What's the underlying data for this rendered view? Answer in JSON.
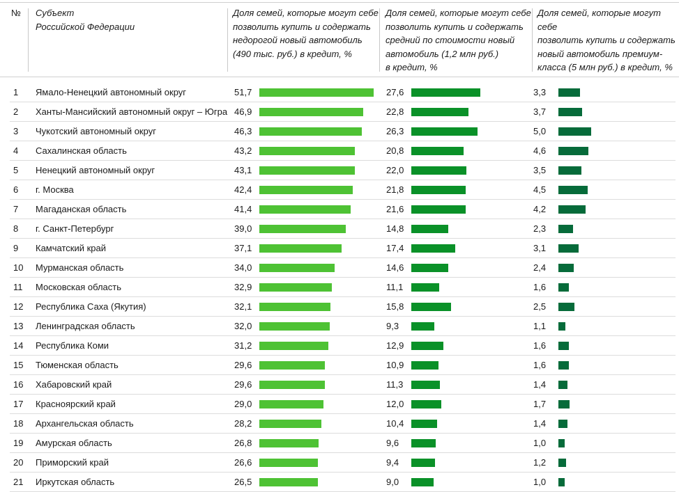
{
  "chart_data": {
    "type": "table",
    "title": "",
    "columns": [
      {
        "key": "num",
        "label": "№"
      },
      {
        "key": "region",
        "label": "Субъект\nРоссийской Федерации"
      },
      {
        "key": "cheap",
        "label": "Доля семей, которые могут себе позволить купить и содержать недорогой новый автомобиль (490 тыс. руб.) в кредит, %",
        "color": "#4ec234"
      },
      {
        "key": "mid",
        "label": "Доля семей, которые могут себе позволить купить и содержать средний по стоимости новый автомобиль (1,2 млн руб.) в кредит, %",
        "color": "#0a9128"
      },
      {
        "key": "premium",
        "label": "Доля семей, которые могут себе позволить купить и содержать новый автомобиль премиум-класса (5 млн руб.) в кредит, %",
        "color": "#066b3a"
      }
    ],
    "categories": [
      "Ямало-Ненецкий автономный округ",
      "Ханты-Мансийский автономный округ – Югра",
      "Чукотский автономный округ",
      "Сахалинская область",
      "Ненецкий автономный округ",
      "г. Москва",
      "Магаданская область",
      "г. Санкт-Петербург",
      "Камчатский край",
      "Мурманская область",
      "Московская область",
      "Республика Саха (Якутия)",
      "Ленинградская область",
      "Республика Коми",
      "Тюменская область",
      "Хабаровский край",
      "Красноярский край",
      "Архангельская область",
      "Амурская область",
      "Приморский край",
      "Иркутская область"
    ],
    "series": [
      {
        "name": "Недорогой новый автомобиль (490 тыс. руб.)",
        "color": "#4ec234",
        "values": [
          51.7,
          46.9,
          46.3,
          43.2,
          43.1,
          42.4,
          41.4,
          39.0,
          37.1,
          34.0,
          32.9,
          32.1,
          32.0,
          31.2,
          29.6,
          29.6,
          29.0,
          28.2,
          26.8,
          26.6,
          26.5
        ]
      },
      {
        "name": "Средний по стоимости новый автомобиль (1,2 млн руб.)",
        "color": "#0a9128",
        "values": [
          27.6,
          22.8,
          26.3,
          20.8,
          22.0,
          21.8,
          21.6,
          14.8,
          17.4,
          14.6,
          11.1,
          15.8,
          9.3,
          12.9,
          10.9,
          11.3,
          12.0,
          10.4,
          9.6,
          9.4,
          9.0
        ]
      },
      {
        "name": "Новый автомобиль премиум-класса (5 млн руб.)",
        "color": "#066b3a",
        "values": [
          3.3,
          3.7,
          5.0,
          4.6,
          3.5,
          4.5,
          4.2,
          2.3,
          3.1,
          2.4,
          1.6,
          2.5,
          1.1,
          1.6,
          1.6,
          1.4,
          1.7,
          1.4,
          1.0,
          1.2,
          1.0
        ]
      }
    ],
    "value_labels": [
      [
        "51,7",
        "27,6",
        "3,3"
      ],
      [
        "46,9",
        "22,8",
        "3,7"
      ],
      [
        "46,3",
        "26,3",
        "5,0"
      ],
      [
        "43,2",
        "20,8",
        "4,6"
      ],
      [
        "43,1",
        "22,0",
        "3,5"
      ],
      [
        "42,4",
        "21,8",
        "4,5"
      ],
      [
        "41,4",
        "21,6",
        "4,2"
      ],
      [
        "39,0",
        "14,8",
        "2,3"
      ],
      [
        "37,1",
        "17,4",
        "3,1"
      ],
      [
        "34,0",
        "14,6",
        "2,4"
      ],
      [
        "32,9",
        "11,1",
        "1,6"
      ],
      [
        "32,1",
        "15,8",
        "2,5"
      ],
      [
        "32,0",
        "9,3",
        "1,1"
      ],
      [
        "31,2",
        "12,9",
        "1,6"
      ],
      [
        "29,6",
        "10,9",
        "1,6"
      ],
      [
        "29,6",
        "11,3",
        "1,4"
      ],
      [
        "29,0",
        "12,0",
        "1,7"
      ],
      [
        "28,2",
        "10,4",
        "1,4"
      ],
      [
        "26,8",
        "9,6",
        "1,0"
      ],
      [
        "26,6",
        "9,4",
        "1,2"
      ],
      [
        "26,5",
        "9,0",
        "1,0"
      ]
    ]
  },
  "header": {
    "num": "№",
    "region_line1": "Субъект",
    "region_line2": "Российской Федерации",
    "col1_lines": [
      "Доля семей, которые могут себе",
      "позволить купить и содержать",
      "недорогой новый автомобиль",
      "(490 тыс. руб.) в кредит, %"
    ],
    "col2_lines": [
      "Доля семей, которые могут себе",
      "позволить купить и содержать",
      "средний по стоимости новый",
      "автомобиль (1,2 млн руб.)",
      "в кредит, %"
    ],
    "col3_lines": [
      "Доля семей, которые могут себе",
      "позволить купить и содержать",
      "новый автомобиль премиум-",
      "класса (5 млн руб.) в кредит, %"
    ]
  }
}
